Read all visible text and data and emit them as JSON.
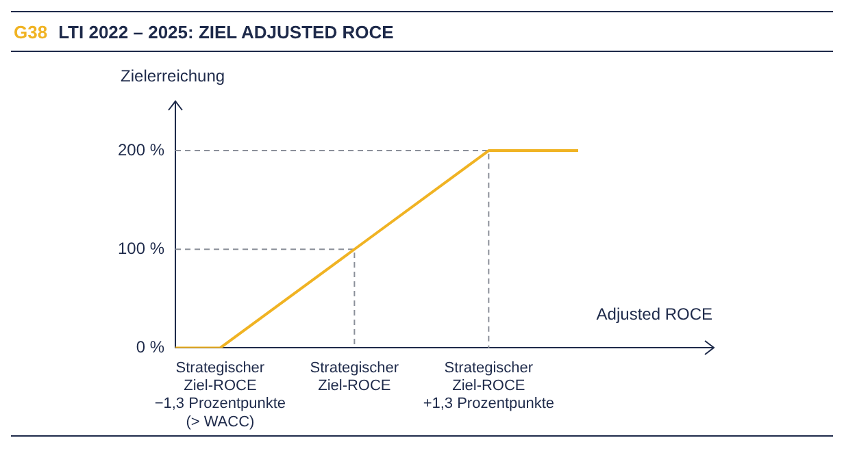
{
  "chart_data": {
    "type": "line",
    "title": "G38 LTI 2022 – 2025: ZIEL ADJUSTED ROCE",
    "xlabel": "Adjusted ROCE",
    "ylabel": "Zielerreichung",
    "categories": [
      null,
      "Strategischer\nZiel-ROCE\n−1,3 Prozentpunkte\n(> WACC)",
      null,
      null,
      "Strategischer\nZiel-ROCE",
      null,
      null,
      "Strategischer\nZiel-ROCE\n+1,3 Prozentpunkte",
      null,
      null,
      null,
      null,
      null
    ],
    "ylim": [
      0,
      250
    ],
    "yticks": [
      {
        "value": 0,
        "label": "0 %"
      },
      {
        "value": 100,
        "label": "100 %"
      },
      {
        "value": 200,
        "label": "200 %"
      }
    ],
    "series": [
      {
        "color": "#f0b323",
        "values": [
          0,
          0,
          null,
          null,
          100,
          null,
          null,
          200,
          null,
          200,
          null,
          null,
          null
        ]
      }
    ],
    "ref_lines": [
      {
        "axis": "y",
        "value": 100,
        "color": "#8a8f99",
        "line_style": "dashed"
      },
      {
        "axis": "y",
        "value": 200,
        "color": "#8a8f99",
        "line_style": "dashed"
      }
    ]
  }
}
